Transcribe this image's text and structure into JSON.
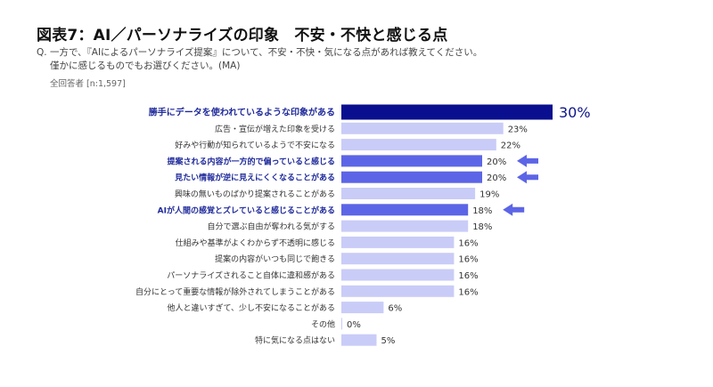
{
  "header": {
    "title": "図表7：AI／パーソナライズの印象　不安・不快と感じる点",
    "question_line1": "Q. 一方で、『AIによるパーソナライズ提案』について、不安・不快・気になる点があれば教えてください。",
    "question_line2": "僅かに感じるものでもお選びください。(MA)",
    "respondents": "全回答者 [n:1,597]"
  },
  "colors": {
    "top": "#0a0f8f",
    "highlight": "#5c65e6",
    "normal": "#c9ccf7",
    "highlight_text": "#1f2a9a",
    "arrow": "#5c65e6"
  },
  "chart_data": {
    "type": "bar",
    "orientation": "horizontal",
    "title": "図表7：AI／パーソナライズの印象　不安・不快と感じる点",
    "xlabel": "",
    "ylabel": "",
    "xlim": [
      0,
      30
    ],
    "unit": "%",
    "grid": false,
    "categories": [
      "勝手にデータを使われているような印象がある",
      "広告・宣伝が増えた印象を受ける",
      "好みや行動が知られているようで不安になる",
      "提案される内容が一方的で偏っていると感じる",
      "見たい情報が逆に見えにくくなることがある",
      "興味の無いものばかり提案されることがある",
      "AIが人間の感覚とズレていると感じることがある",
      "自分で選ぶ自由が奪われる気がする",
      "仕組みや基準がよくわからず不透明に感じる",
      "提案の内容がいつも同じで飽きる",
      "パーソナライズされること自体に違和感がある",
      "自分にとって重要な情報が除外されてしまうことがある",
      "他人と違いすぎて、少し不安になることがある",
      "その他",
      "特に気になる点はない"
    ],
    "values": [
      30,
      23,
      22,
      20,
      20,
      19,
      18,
      18,
      16,
      16,
      16,
      16,
      6,
      0,
      5
    ],
    "value_labels": [
      "30%",
      "23%",
      "22%",
      "20%",
      "20%",
      "19%",
      "18%",
      "18%",
      "16%",
      "16%",
      "16%",
      "16%",
      "6%",
      "0%",
      "5%"
    ],
    "emphasis": [
      "top",
      "normal",
      "normal",
      "highlight",
      "highlight",
      "normal",
      "highlight",
      "normal",
      "normal",
      "normal",
      "normal",
      "normal",
      "normal",
      "normal",
      "normal"
    ],
    "arrows": [
      false,
      false,
      false,
      true,
      true,
      false,
      true,
      false,
      false,
      false,
      false,
      false,
      false,
      false,
      false
    ]
  }
}
